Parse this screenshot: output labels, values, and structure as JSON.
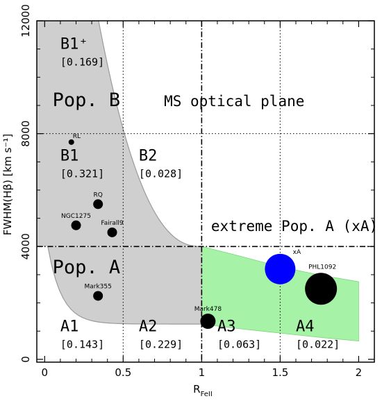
{
  "chart_data": {
    "type": "scatter",
    "title": "",
    "xlabel_main": "R",
    "xlabel_sub": "FeII",
    "ylabel": "FWHM(Hβ) [km s⁻¹]",
    "xlim": [
      -0.05,
      2.1
    ],
    "ylim": [
      -100,
      12000
    ],
    "x_ticks": [
      {
        "value": 0,
        "label": "0"
      },
      {
        "value": 0.5,
        "label": "0.5"
      },
      {
        "value": 1,
        "label": "1"
      },
      {
        "value": 1.5,
        "label": "1.5"
      },
      {
        "value": 2,
        "label": "2"
      }
    ],
    "y_ticks": [
      {
        "value": 0,
        "label": "0"
      },
      {
        "value": 4000,
        "label": "4000"
      },
      {
        "value": 8000,
        "label": "8000"
      },
      {
        "value": 12000,
        "label": "12000"
      }
    ],
    "grid_x": [
      0.5,
      1.5
    ],
    "grid_y": [
      8000
    ],
    "separator_x": 1.0,
    "separator_y": 4000,
    "plane_title": "MS optical plane",
    "pop_b_label": "Pop. B",
    "pop_a_label": "Pop. A",
    "xa_label": "extreme Pop. A (xA)",
    "regions": [
      {
        "name": "B1⁺",
        "fraction": "[0.169]",
        "x": 0.1,
        "y": 11000
      },
      {
        "name": "B1",
        "fraction": "[0.321]",
        "x": 0.1,
        "y": 7050
      },
      {
        "name": "B2",
        "fraction": "[0.028]",
        "x": 0.6,
        "y": 7050
      },
      {
        "name": "A1",
        "fraction": "[0.143]",
        "x": 0.1,
        "y": 1000
      },
      {
        "name": "A2",
        "fraction": "[0.229]",
        "x": 0.6,
        "y": 1000
      },
      {
        "name": "A3",
        "fraction": "[0.063]",
        "x": 1.1,
        "y": 1000,
        "color": "#1a9e1a"
      },
      {
        "name": "A4",
        "fraction": "[0.022]",
        "x": 1.6,
        "y": 1000,
        "color": "#1a9e1a"
      }
    ],
    "points": [
      {
        "name": "RL",
        "x": 0.17,
        "y": 7700,
        "size": 4
      },
      {
        "name": "RQ",
        "x": 0.34,
        "y": 5500,
        "size": 7
      },
      {
        "name": "NGC1275",
        "x": 0.2,
        "y": 4750,
        "size": 7
      },
      {
        "name": "Fairall9",
        "x": 0.43,
        "y": 4500,
        "size": 7
      },
      {
        "name": "Mark355",
        "x": 0.34,
        "y": 2250,
        "size": 7
      },
      {
        "name": "Mark478",
        "x": 1.04,
        "y": 1350,
        "size": 11
      },
      {
        "name": "xA",
        "x": 1.5,
        "y": 3200,
        "size": 22,
        "color": "#0000ff"
      },
      {
        "name": "PHL1092",
        "x": 1.76,
        "y": 2500,
        "size": 23
      }
    ],
    "colors": {
      "pop_b_fill": "#cfcfcf",
      "pop_a_fill": "#cfcfcf",
      "xa_fill": "#a6f2a6",
      "xa_text": "#1a7f1a",
      "boundary": "#9a9a9a"
    }
  }
}
